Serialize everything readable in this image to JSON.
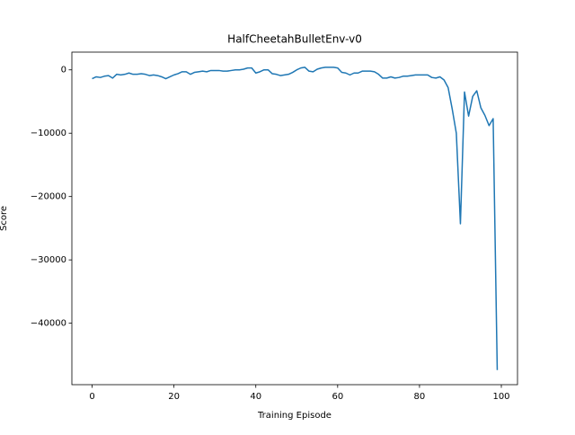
{
  "chart_data": {
    "type": "line",
    "title": "HalfCheetahBulletEnv-v0",
    "x_label": "Training Episode",
    "y_label": "Score",
    "x": [
      0,
      1,
      2,
      3,
      4,
      5,
      6,
      7,
      8,
      9,
      10,
      11,
      12,
      13,
      14,
      15,
      16,
      17,
      18,
      19,
      20,
      21,
      22,
      23,
      24,
      25,
      26,
      27,
      28,
      29,
      30,
      31,
      32,
      33,
      34,
      35,
      36,
      37,
      38,
      39,
      40,
      41,
      42,
      43,
      44,
      45,
      46,
      47,
      48,
      49,
      50,
      51,
      52,
      53,
      54,
      55,
      56,
      57,
      58,
      59,
      60,
      61,
      62,
      63,
      64,
      65,
      66,
      67,
      68,
      69,
      70,
      71,
      72,
      73,
      74,
      75,
      76,
      77,
      78,
      79,
      80,
      81,
      82,
      83,
      84,
      85,
      86,
      87,
      88,
      89,
      90,
      91,
      92,
      93,
      94,
      95,
      96,
      97,
      98,
      99
    ],
    "series": [
      {
        "name": "Score",
        "color": "#1f77b4",
        "values": [
          -1400,
          -1100,
          -1200,
          -1000,
          -900,
          -1300,
          -700,
          -800,
          -700,
          -500,
          -700,
          -700,
          -600,
          -700,
          -900,
          -800,
          -900,
          -1100,
          -1400,
          -1100,
          -800,
          -600,
          -300,
          -300,
          -700,
          -400,
          -300,
          -200,
          -300,
          -100,
          -100,
          -100,
          -200,
          -200,
          -100,
          0,
          0,
          100,
          300,
          300,
          -500,
          -300,
          0,
          0,
          -600,
          -700,
          -900,
          -800,
          -700,
          -400,
          0,
          300,
          400,
          -200,
          -300,
          100,
          300,
          400,
          400,
          400,
          300,
          -400,
          -500,
          -800,
          -500,
          -500,
          -200,
          -200,
          -200,
          -300,
          -700,
          -1300,
          -1300,
          -1100,
          -1300,
          -1200,
          -1000,
          -1000,
          -900,
          -800,
          -800,
          -800,
          -800,
          -1200,
          -1300,
          -1100,
          -1600,
          -2800,
          -6200,
          -10000,
          -24300,
          -3500,
          -7300,
          -4200,
          -3300,
          -6000,
          -7200,
          -8800,
          -7700,
          -47400
        ]
      }
    ],
    "xlim": [
      -4.95,
      103.95
    ],
    "xticks": [
      0,
      20,
      40,
      60,
      80,
      100
    ],
    "ylim": [
      -49700,
      2800
    ],
    "yticks": [
      0,
      {
        "value": -10000,
        "label": "−10000"
      },
      {
        "value": -20000,
        "label": "−20000"
      },
      {
        "value": -30000,
        "label": "−30000"
      },
      {
        "value": -40000,
        "label": "−40000"
      }
    ]
  }
}
